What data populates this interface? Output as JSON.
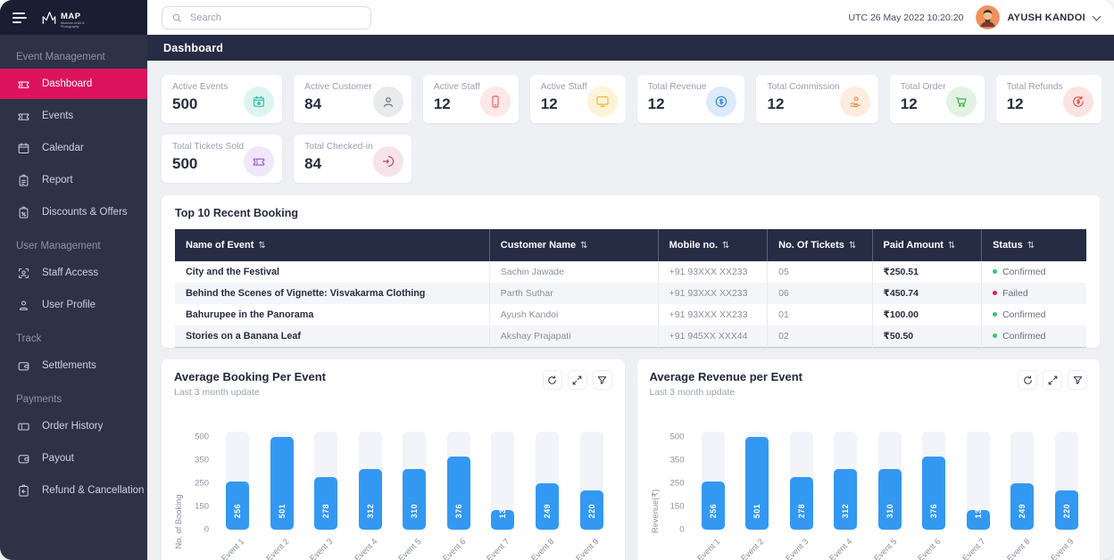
{
  "app": {
    "logo_text": "MAP",
    "logo_subtext": "Museum of Art & Photography"
  },
  "topbar": {
    "search_placeholder": "Search",
    "utc_time": "UTC 26 May 2022 10:20:20",
    "user_name": "AYUSH KANDOI"
  },
  "page": {
    "title": "Dashboard"
  },
  "sidebar": {
    "sections": [
      {
        "label": "Event Management",
        "items": [
          {
            "label": "Dashboard",
            "icon": "ticket-icon",
            "active": true
          },
          {
            "label": "Events",
            "icon": "ticket-icon",
            "active": false
          },
          {
            "label": "Calendar",
            "icon": "calendar-icon",
            "active": false
          },
          {
            "label": "Report",
            "icon": "report-clipboard-icon",
            "active": false
          },
          {
            "label": "Discounts & Offers",
            "icon": "discount-clipboard-icon",
            "active": false
          }
        ]
      },
      {
        "label": "User Management",
        "items": [
          {
            "label": "Staff Access",
            "icon": "staff-access-icon",
            "active": false
          },
          {
            "label": "User Profile",
            "icon": "user-profile-icon",
            "active": false
          }
        ]
      },
      {
        "label": "Track",
        "items": [
          {
            "label": "Settlements",
            "icon": "wallet-icon",
            "active": false
          }
        ]
      },
      {
        "label": "Payments",
        "items": [
          {
            "label": "Order History",
            "icon": "order-history-icon",
            "active": false
          },
          {
            "label": "Payout",
            "icon": "wallet-icon",
            "active": false
          },
          {
            "label": "Refund & Cancellation",
            "icon": "refund-clipboard-icon",
            "active": false
          }
        ]
      }
    ]
  },
  "stat_cards": [
    {
      "label": "Active Events",
      "value": "500",
      "icon": "calendar-star-icon",
      "color": "#26bfa6",
      "bg": "#ddf5f1"
    },
    {
      "label": "Active Customer",
      "value": "84",
      "icon": "person-icon",
      "color": "#5c6370",
      "bg": "#e9eaec"
    },
    {
      "label": "Active Staff",
      "value": "12",
      "icon": "smartphone-icon",
      "color": "#f25c5c",
      "bg": "#fde7e7"
    },
    {
      "label": "Active Staff",
      "value": "12",
      "icon": "monitor-icon",
      "color": "#f0b429",
      "bg": "#fcf3d9"
    },
    {
      "label": "Total Revenue",
      "value": "12",
      "icon": "dollar-circle-icon",
      "color": "#2e86de",
      "bg": "#ddeaf8"
    },
    {
      "label": "Total Commission",
      "value": "12",
      "icon": "hand-coin-icon",
      "color": "#ef8b45",
      "bg": "#fdecdf"
    },
    {
      "label": "Total Order",
      "value": "12",
      "icon": "cart-icon",
      "color": "#3fae4e",
      "bg": "#e2f3e3"
    },
    {
      "label": "Total Refunds",
      "value": "12",
      "icon": "refund-circle-icon",
      "color": "#e74c3c",
      "bg": "#fbe3e1"
    },
    {
      "label": "Total Tickets Sold",
      "value": "500",
      "icon": "ticket-icon",
      "color": "#9b59d0",
      "bg": "#f0e7fa"
    },
    {
      "label": "Total Checked-in",
      "value": "84",
      "icon": "login-icon",
      "color": "#b8475f",
      "bg": "#f6e3ea"
    }
  ],
  "booking_table": {
    "title": "Top 10 Recent Booking",
    "sort_glyph": "⇅",
    "columns": [
      "Name of Event",
      "Customer Name",
      "Mobile no.",
      "No. Of Tickets",
      "Paid Amount",
      "Status"
    ],
    "status_colors": {
      "Confirmed": "#2ecc71",
      "Failed": "#e01b5d"
    },
    "rows": [
      {
        "event": "City and the Festival",
        "customer": "Sachin Jawade",
        "mobile": "+91 93XXX XX233",
        "tickets": "05",
        "amount": "₹250.51",
        "status": "Confirmed"
      },
      {
        "event": "Behind the Scenes of Vignette: Visvakarma Clothing",
        "customer": "Parth Suthar",
        "mobile": "+91 93XXX XX233",
        "tickets": "06",
        "amount": "₹450.74",
        "status": "Failed"
      },
      {
        "event": "Bahurupee in the Panorama",
        "customer": "Ayush Kandoi",
        "mobile": "+91 93XXX XX233",
        "tickets": "01",
        "amount": "₹100.00",
        "status": "Confirmed"
      },
      {
        "event": "Stories on a Banana Leaf",
        "customer": "Akshay Prajapati",
        "mobile": "+91 945XX XXX44",
        "tickets": "02",
        "amount": "₹50.50",
        "status": "Confirmed"
      }
    ]
  },
  "chart_data": [
    {
      "type": "bar",
      "title": "Average Booking Per Event",
      "subtitle": "Last 3 month update",
      "ylabel": "No. of Booking",
      "xlabel": "",
      "categories": [
        "Event 1",
        "Event 2",
        "Event 3",
        "Event 4",
        "Event 5",
        "Event 6",
        "Event 7",
        "Event 8",
        "Event 9"
      ],
      "values": [
        256,
        501,
        278,
        312,
        310,
        376,
        130,
        249,
        220
      ],
      "yticks": [
        0,
        150,
        250,
        350,
        500
      ],
      "ylim": [
        0,
        500
      ],
      "grid": false,
      "legend": "none",
      "bar_color": "#3398f2",
      "track_color": "#f3f4f9",
      "toolbar_icons": [
        "refresh-icon",
        "expand-icon",
        "filter-icon"
      ]
    },
    {
      "type": "bar",
      "title": "Average Revenue per Event",
      "subtitle": "Last 3 month update",
      "ylabel": "Revenue(₹)",
      "xlabel": "",
      "categories": [
        "Event 1",
        "Event 2",
        "Event 3",
        "Event 4",
        "Event 5",
        "Event 6",
        "Event 7",
        "Event 8",
        "Event 9"
      ],
      "values": [
        256,
        501,
        278,
        312,
        310,
        376,
        130,
        249,
        220
      ],
      "yticks": [
        0,
        150,
        250,
        350,
        500
      ],
      "ylim": [
        0,
        500
      ],
      "grid": false,
      "legend": "none",
      "bar_color": "#3398f2",
      "track_color": "#f3f4f9",
      "toolbar_icons": [
        "refresh-icon",
        "expand-icon",
        "filter-icon"
      ]
    }
  ]
}
